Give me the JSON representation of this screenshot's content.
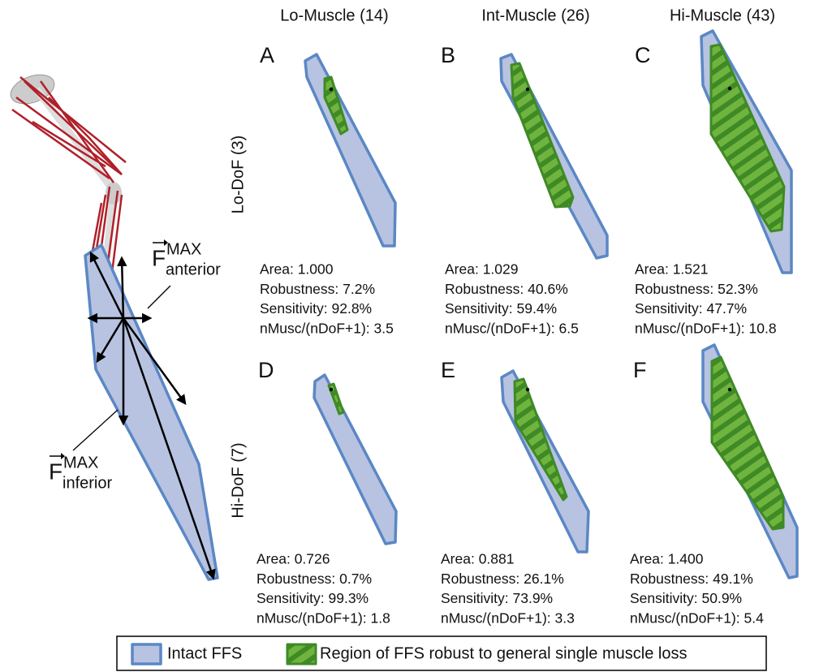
{
  "column_headers": [
    "Lo-Muscle (14)",
    "Int-Muscle (26)",
    "Hi-Muscle (43)"
  ],
  "row_labels": [
    "Lo-DoF (3)",
    "Hi-DoF (7)"
  ],
  "force_labels": [
    {
      "symbol": "F",
      "sup": "MAX",
      "sub": "anterior"
    },
    {
      "symbol": "F",
      "sup": "MAX",
      "sub": "inferior"
    }
  ],
  "panels": [
    {
      "letter": "A",
      "lines": [
        "Area: 1.000",
        "Robustness: 7.2%",
        "Sensitivity: 92.8%",
        "nMusc/(nDoF+1): 3.5"
      ]
    },
    {
      "letter": "B",
      "lines": [
        "Area: 1.029",
        "Robustness: 40.6%",
        "Sensitivity: 59.4%",
        "nMusc/(nDoF+1): 6.5"
      ]
    },
    {
      "letter": "C",
      "lines": [
        "Area: 1.521",
        "Robustness: 52.3%",
        "Sensitivity: 47.7%",
        "nMusc/(nDoF+1): 10.8"
      ]
    },
    {
      "letter": "D",
      "lines": [
        "Area: 0.726",
        "Robustness: 0.7%",
        "Sensitivity: 99.3%",
        "nMusc/(nDoF+1): 1.8"
      ]
    },
    {
      "letter": "E",
      "lines": [
        "Area: 0.881",
        "Robustness: 26.1%",
        "Sensitivity: 73.9%",
        "nMusc/(nDoF+1): 3.3"
      ]
    },
    {
      "letter": "F",
      "lines": [
        "Area: 1.400",
        "Robustness: 49.1%",
        "Sensitivity: 50.9%",
        "nMusc/(nDoF+1): 5.4"
      ]
    }
  ],
  "legend": [
    "Intact FFS",
    "Region of FFS robust to general single muscle loss"
  ]
}
